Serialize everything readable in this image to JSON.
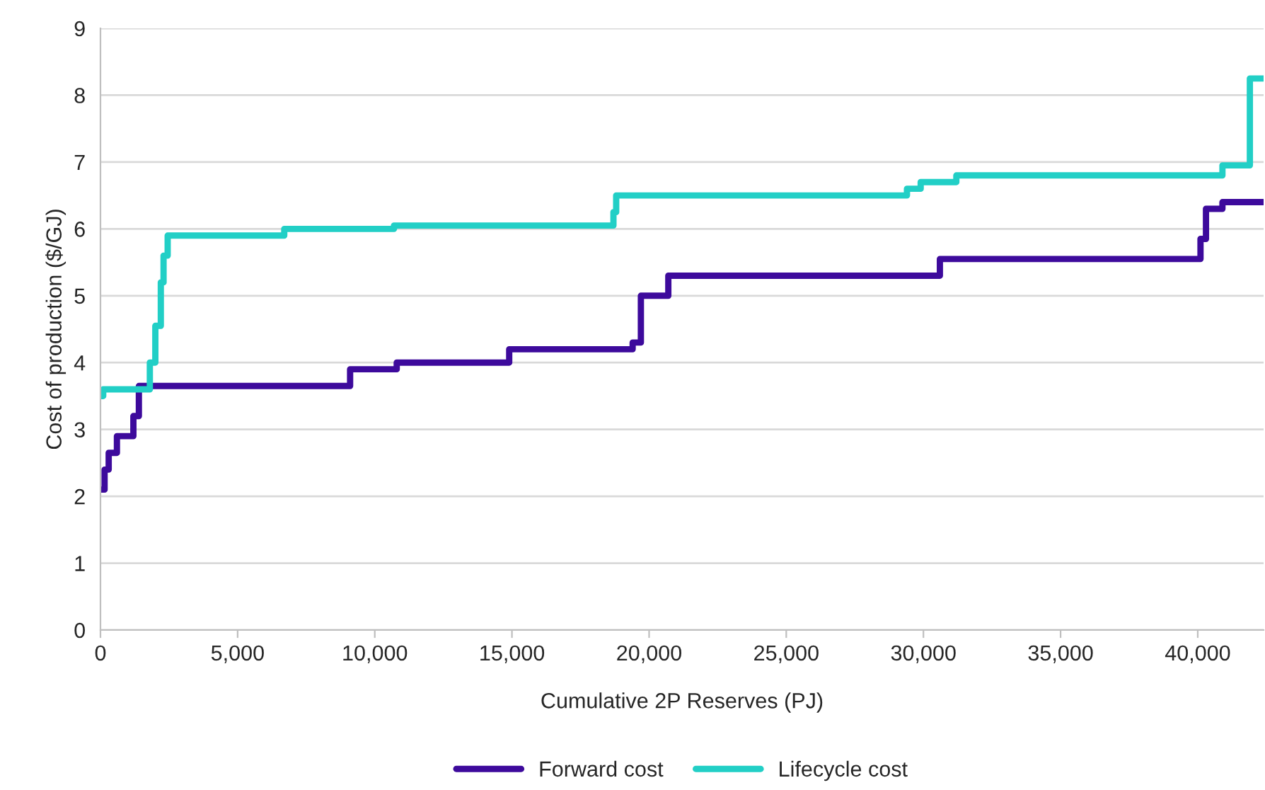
{
  "chart_data": {
    "type": "step",
    "xlabel": "Cumulative 2P Reserves (PJ)",
    "ylabel": "Cost of production ($/GJ)",
    "series": [
      {
        "name": "Forward cost",
        "color": "#3d0a9c",
        "x": [
          0,
          150,
          300,
          600,
          1200,
          1400,
          9100,
          10800,
          14900,
          19400,
          19700,
          20700,
          30600,
          40100,
          40300,
          40900,
          42400
        ],
        "values": [
          2.1,
          2.4,
          2.65,
          2.9,
          3.2,
          3.65,
          3.9,
          4.0,
          4.2,
          4.3,
          5.0,
          5.3,
          5.55,
          5.85,
          6.3,
          6.4,
          6.4
        ]
      },
      {
        "name": "Lifecycle cost",
        "color": "#22cfc6",
        "x": [
          0,
          100,
          1800,
          2000,
          2200,
          2300,
          2450,
          6700,
          10700,
          18700,
          18800,
          29400,
          29900,
          31200,
          40900,
          41900,
          42400
        ],
        "values": [
          3.5,
          3.6,
          4.0,
          4.55,
          5.2,
          5.6,
          5.9,
          6.0,
          6.05,
          6.25,
          6.5,
          6.6,
          6.7,
          6.8,
          6.95,
          8.25,
          8.25
        ]
      }
    ],
    "xlim": [
      0,
      42400
    ],
    "ylim": [
      0,
      9
    ],
    "xticks": [
      0,
      {
        "value": 5000,
        "label": "5,000"
      },
      {
        "value": 10000,
        "label": "10,000"
      },
      {
        "value": 15000,
        "label": "15,000"
      },
      {
        "value": 20000,
        "label": "20,000"
      },
      {
        "value": 25000,
        "label": "25,000"
      },
      {
        "value": 30000,
        "label": "30,000"
      },
      {
        "value": 35000,
        "label": "35,000"
      },
      {
        "value": 40000,
        "label": "40,000"
      }
    ],
    "yticks": [
      0,
      1,
      2,
      3,
      4,
      5,
      6,
      7,
      8,
      9
    ],
    "grid": "y",
    "legend": "bottom",
    "line_style": "solid",
    "marker": "none"
  }
}
